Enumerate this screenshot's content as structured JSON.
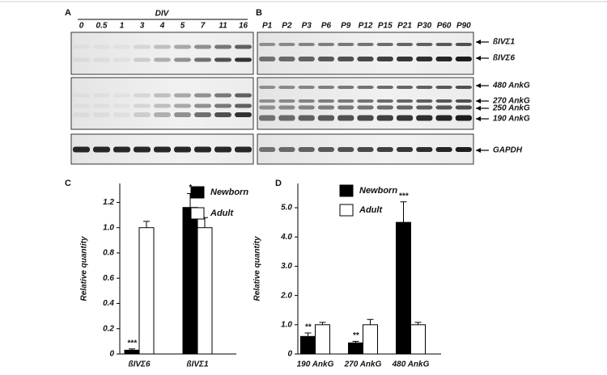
{
  "blots": {
    "panel_a": "A",
    "panel_b": "B",
    "div_label": "DIV",
    "lanes_a": [
      "0",
      "0.5",
      "1",
      "3",
      "4",
      "5",
      "7",
      "11",
      "16"
    ],
    "lanes_b": [
      "P1",
      "P2",
      "P3",
      "P6",
      "P9",
      "P12",
      "P15",
      "P21",
      "P30",
      "P60",
      "P90"
    ],
    "bands": [
      "ßIVΣ1",
      "ßIVΣ6",
      "480 AnkG",
      "270 AnkG",
      "250 AnkG",
      "190 AnkG",
      "GAPDH"
    ]
  },
  "chart_data": [
    {
      "type": "bar",
      "panel": "C",
      "ylabel": "Relative quantity",
      "categories": [
        "ßIVΣ6",
        "ßIVΣ1"
      ],
      "series": [
        {
          "name": "Newborn",
          "color": "#000000",
          "values": [
            0.03,
            1.16
          ],
          "errors": [
            0.01,
            0.11
          ],
          "significance": [
            "***",
            "*"
          ]
        },
        {
          "name": "Adult",
          "color": "#ffffff",
          "values": [
            1.0,
            1.0
          ],
          "errors": [
            0.05,
            0.08
          ]
        }
      ],
      "ylim": [
        0,
        1.35
      ],
      "yticks": [
        0,
        0.2,
        0.4,
        0.6,
        0.8,
        {
          "value": 1,
          "label": "1.0"
        },
        1.2
      ]
    },
    {
      "type": "bar",
      "panel": "D",
      "ylabel": "Relative quantity",
      "categories": [
        "190 AnkG",
        "270 AnkG",
        "480 AnkG"
      ],
      "series": [
        {
          "name": "Newborn",
          "color": "#000000",
          "values": [
            0.6,
            0.38,
            4.5
          ],
          "errors": [
            0.12,
            0.05,
            0.7
          ],
          "significance": [
            "**",
            "**",
            "***"
          ]
        },
        {
          "name": "Adult",
          "color": "#ffffff",
          "values": [
            1.0,
            1.0,
            1.0
          ],
          "errors": [
            0.08,
            0.18,
            0.08
          ]
        }
      ],
      "ylim": [
        0,
        5.83
      ],
      "yticks": [
        0,
        {
          "value": 1,
          "label": "1.0"
        },
        {
          "value": 2,
          "label": "2.0"
        },
        {
          "value": 3,
          "label": "3.0"
        },
        {
          "value": 4,
          "label": "4.0"
        },
        {
          "value": 5,
          "label": "5.0"
        }
      ]
    }
  ]
}
